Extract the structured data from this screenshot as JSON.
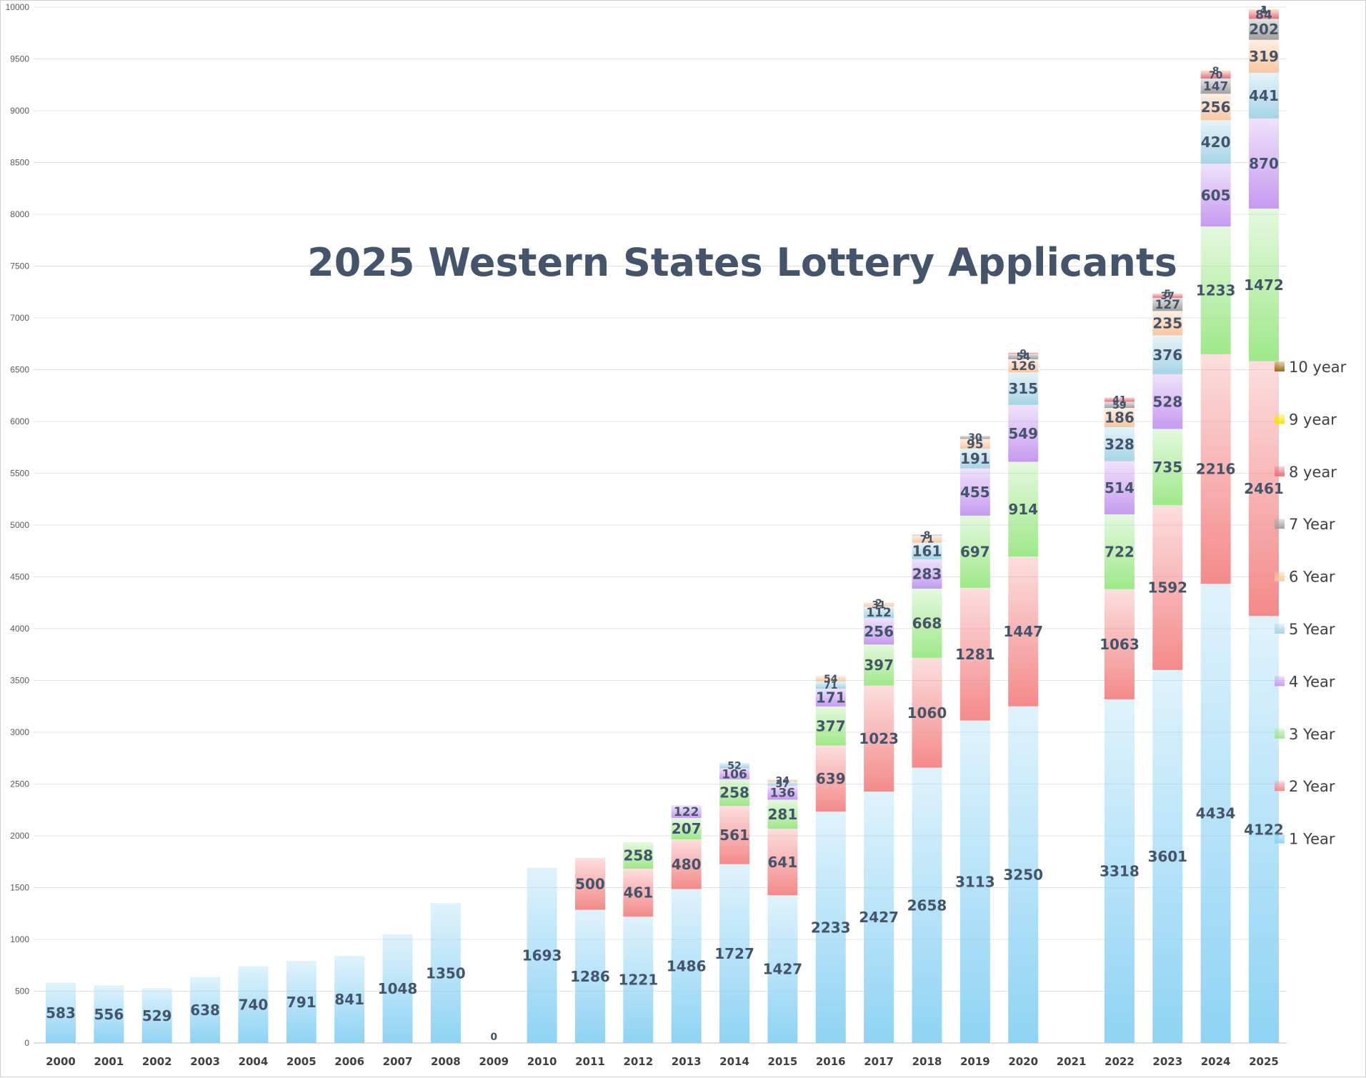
{
  "chart_data": {
    "type": "bar",
    "stacked": true,
    "title": "2025 Western States Lottery Applicants",
    "xlabel": "",
    "ylabel": "",
    "ylim": [
      0,
      10000
    ],
    "yticks": [
      0,
      500,
      1000,
      1500,
      2000,
      2500,
      3000,
      3500,
      4000,
      4500,
      5000,
      5500,
      6000,
      6500,
      7000,
      7500,
      8000,
      8500,
      9000,
      9500,
      10000
    ],
    "grid": true,
    "legend_position": "right",
    "categories": [
      "2000",
      "2001",
      "2002",
      "2003",
      "2004",
      "2005",
      "2006",
      "2007",
      "2008",
      "2009",
      "2010",
      "2011",
      "2012",
      "2013",
      "2014",
      "2015",
      "2016",
      "2017",
      "2018",
      "2019",
      "2020",
      "2021",
      "2022",
      "2023",
      "2024",
      "2025"
    ],
    "series": [
      {
        "name": "1 Year",
        "color": "#8fd3f4",
        "values": [
          583,
          556,
          529,
          638,
          740,
          791,
          841,
          1048,
          1350,
          0,
          1693,
          1286,
          1221,
          1486,
          1727,
          1427,
          2233,
          2427,
          2658,
          3113,
          3250,
          null,
          3318,
          3601,
          4434,
          4122
        ]
      },
      {
        "name": "2 Year",
        "color": "#f48a8a",
        "values": [
          null,
          null,
          null,
          null,
          null,
          null,
          null,
          null,
          null,
          null,
          null,
          500,
          461,
          480,
          561,
          641,
          639,
          1023,
          1060,
          1281,
          1447,
          null,
          1063,
          1592,
          2216,
          2461
        ]
      },
      {
        "name": "3 Year",
        "color": "#9fe88a",
        "values": [
          null,
          null,
          null,
          null,
          null,
          null,
          null,
          null,
          null,
          null,
          null,
          null,
          258,
          207,
          258,
          281,
          377,
          397,
          668,
          697,
          914,
          null,
          722,
          735,
          1233,
          1472
        ]
      },
      {
        "name": "4 Year",
        "color": "#c69af0",
        "values": [
          null,
          null,
          null,
          null,
          null,
          null,
          null,
          null,
          null,
          null,
          null,
          null,
          null,
          122,
          106,
          136,
          171,
          256,
          283,
          455,
          549,
          null,
          514,
          528,
          605,
          870
        ]
      },
      {
        "name": "5 Year",
        "color": "#a6d4e6",
        "values": [
          null,
          null,
          null,
          null,
          null,
          null,
          null,
          null,
          null,
          null,
          null,
          null,
          null,
          null,
          52,
          37,
          71,
          112,
          161,
          191,
          315,
          null,
          328,
          376,
          420,
          441
        ]
      },
      {
        "name": "6 Year",
        "color": "#f9c79f",
        "values": [
          null,
          null,
          null,
          null,
          null,
          null,
          null,
          null,
          null,
          null,
          null,
          null,
          null,
          null,
          null,
          24,
          54,
          31,
          71,
          95,
          126,
          null,
          186,
          235,
          256,
          319
        ]
      },
      {
        "name": "7 Year",
        "color": "#a0a0a0",
        "values": [
          null,
          null,
          null,
          null,
          null,
          null,
          null,
          null,
          null,
          null,
          null,
          null,
          null,
          null,
          null,
          null,
          null,
          2,
          8,
          30,
          54,
          null,
          59,
          127,
          147,
          202
        ]
      },
      {
        "name": "8 year",
        "color": "#e8707a",
        "values": [
          null,
          null,
          null,
          null,
          null,
          null,
          null,
          null,
          null,
          null,
          null,
          null,
          null,
          null,
          null,
          null,
          null,
          null,
          null,
          null,
          9,
          null,
          41,
          37,
          70,
          84
        ]
      },
      {
        "name": "9 year",
        "color": "#f5e400",
        "values": [
          null,
          null,
          null,
          null,
          null,
          null,
          null,
          null,
          null,
          null,
          null,
          null,
          null,
          null,
          null,
          null,
          null,
          null,
          null,
          null,
          null,
          null,
          null,
          5,
          8,
          4
        ]
      },
      {
        "name": "10 year",
        "color": "#9c6a14",
        "values": [
          null,
          null,
          null,
          null,
          null,
          null,
          null,
          null,
          null,
          null,
          null,
          null,
          null,
          null,
          null,
          null,
          null,
          null,
          null,
          null,
          null,
          null,
          null,
          null,
          null,
          1
        ]
      }
    ]
  }
}
